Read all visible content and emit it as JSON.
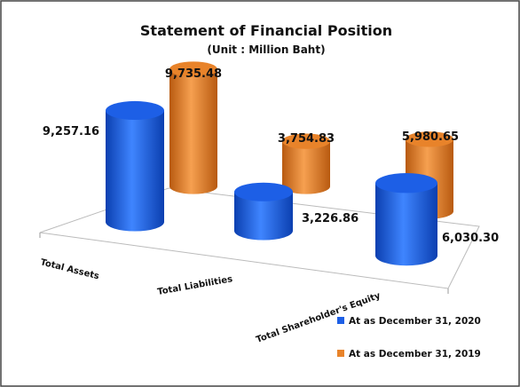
{
  "chart_data": {
    "type": "cylinder-bar",
    "title": "Statement of Financial Position",
    "subtitle": "(Unit : Million Baht)",
    "categories": [
      "Total Assets",
      "Total Liabilities",
      "Total Shareholder's Equity"
    ],
    "series": [
      {
        "name": "At as December 31, 2020",
        "color": "#1d5fe6",
        "values": [
          9257.16,
          3226.86,
          6030.3
        ],
        "value_labels": [
          "9,257.16",
          "3,226.86",
          "6,030.30"
        ]
      },
      {
        "name": "At as December 31, 2019",
        "color": "#e8832a",
        "values": [
          9735.48,
          3754.83,
          5980.65
        ],
        "value_labels": [
          "9,735.48",
          "3,754.83",
          "5,980.65"
        ]
      }
    ],
    "legend": "bottom-right"
  }
}
